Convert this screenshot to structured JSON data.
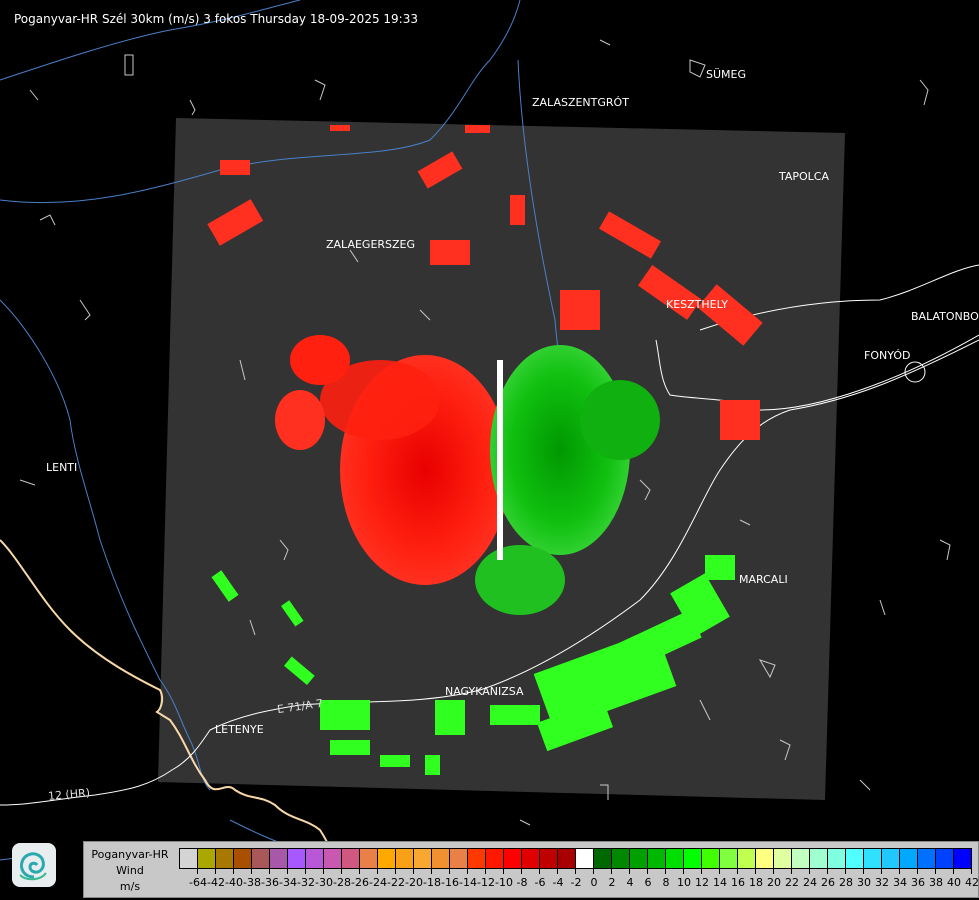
{
  "title": "Poganyvar-HR Szél 30km (m/s) 3 fokos Thursday 18-09-2025 19:33",
  "places": [
    {
      "name": "SÜMEG"
    },
    {
      "name": "ZALASZENTGRÓT"
    },
    {
      "name": "TAPOLCA"
    },
    {
      "name": "ZALAEGERSZEG"
    },
    {
      "name": "KESZTHELY"
    },
    {
      "name": "BALATONBO"
    },
    {
      "name": "FONYÓD"
    },
    {
      "name": "LENTI"
    },
    {
      "name": "MARCALI"
    },
    {
      "name": "NAGYKANIZSA"
    },
    {
      "name": "LETENYE"
    }
  ],
  "road_labels": [
    "E 71/A 7",
    "12 (HR)"
  ],
  "legend": {
    "station": "Poganyvar-HR",
    "quantity": "Wind",
    "unit": "m/s",
    "ticks": [
      "-64",
      "-42",
      "-40",
      "-38",
      "-36",
      "-34",
      "-32",
      "-30",
      "-28",
      "-26",
      "-24",
      "-22",
      "-20",
      "-18",
      "-16",
      "-14",
      "-12",
      "-10",
      "-8",
      "-6",
      "-4",
      "-2",
      "0",
      "2",
      "4",
      "6",
      "8",
      "10",
      "12",
      "14",
      "16",
      "18",
      "20",
      "22",
      "24",
      "26",
      "28",
      "30",
      "32",
      "34",
      "36",
      "38",
      "40",
      "42"
    ],
    "colors": [
      "#d4d4d4",
      "#aaa800",
      "#a87800",
      "#a85000",
      "#a85858",
      "#a858a8",
      "#a858ff",
      "#b858d8",
      "#c858b0",
      "#d05880",
      "#e88048",
      "#ffa800",
      "#f8a018",
      "#f8a830",
      "#f09030",
      "#e88048",
      "#ff3800",
      "#ff1800",
      "#ff0000",
      "#e00000",
      "#c00000",
      "#a80000",
      "#ffffff",
      "#006800",
      "#008800",
      "#00a000",
      "#00b800",
      "#00e000",
      "#00ff00",
      "#40ff00",
      "#80ff40",
      "#c0ff50",
      "#ffff80",
      "#e0ffa0",
      "#c0ffc0",
      "#a0ffd0",
      "#80ffe0",
      "#50ffff",
      "#30e0ff",
      "#20c8ff",
      "#00a8ff",
      "#0070ff",
      "#0040ff",
      "#0000ff"
    ]
  },
  "colors": {
    "background": "#000000",
    "radar_area": "#333333",
    "approaching": "#00e000",
    "receding": "#ff1800",
    "river": "#4a80c8",
    "border": "#f8d8a8",
    "road": "#ffffff"
  }
}
